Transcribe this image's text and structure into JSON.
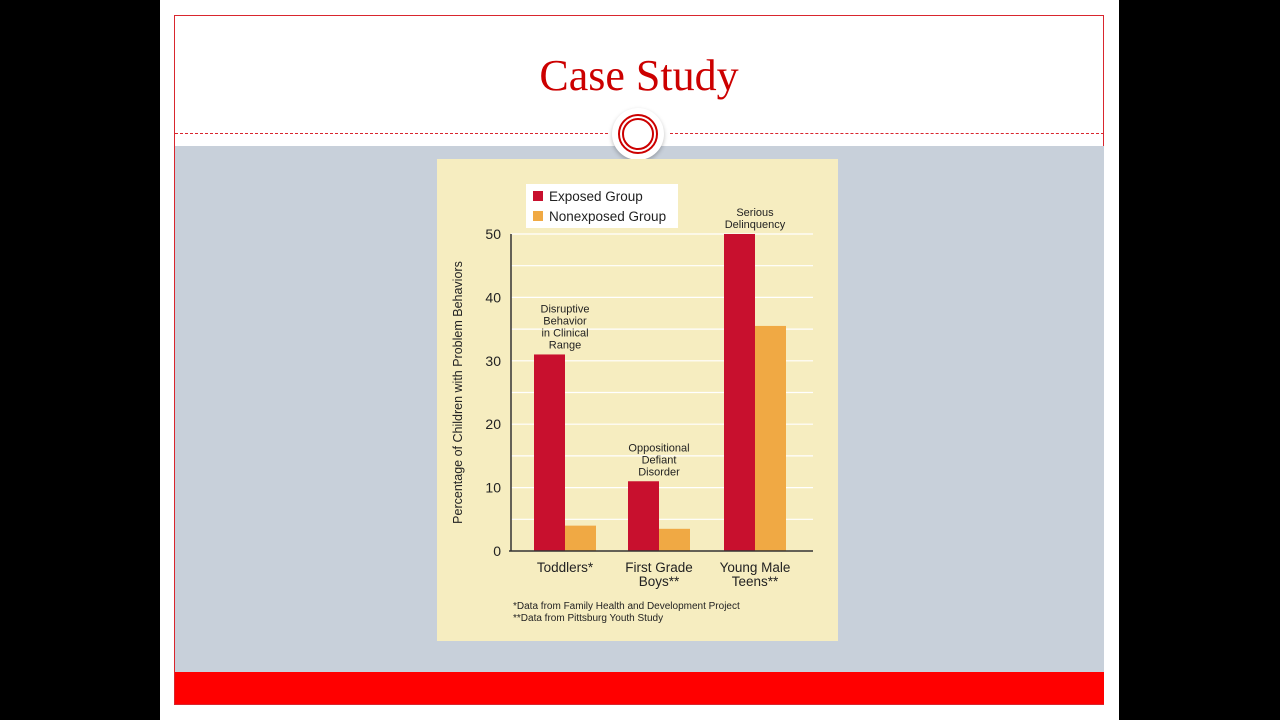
{
  "slide": {
    "title": "Case Study"
  },
  "chart_data": {
    "type": "bar",
    "ylabel": "Percentage of Children with Problem Behaviors",
    "ylim": [
      0,
      50
    ],
    "yticks": [
      0,
      10,
      20,
      30,
      40,
      50
    ],
    "grid": true,
    "legend_position": "top-left",
    "categories": [
      "Toddlers*",
      "First Grade Boys**",
      "Young Male Teens**"
    ],
    "category_lines": [
      [
        "Toddlers*"
      ],
      [
        "First Grade",
        "Boys**"
      ],
      [
        "Young Male",
        "Teens**"
      ]
    ],
    "series": [
      {
        "name": "Exposed Group",
        "color": "#c8102e",
        "values": [
          31,
          11,
          50
        ]
      },
      {
        "name": "Nonexposed Group",
        "color": "#f0a944",
        "values": [
          4,
          3.5,
          35.5
        ]
      }
    ],
    "annotations": [
      {
        "category": 0,
        "lines": [
          "Disruptive",
          "Behavior",
          "in Clinical",
          "Range"
        ]
      },
      {
        "category": 1,
        "lines": [
          "Oppositional",
          "Defiant",
          "Disorder"
        ]
      },
      {
        "category": 2,
        "lines": [
          "Serious",
          "Delinquency"
        ]
      }
    ],
    "footnotes": [
      "*Data from Family Health and Development Project",
      "**Data from Pittsburg Youth Study"
    ]
  }
}
